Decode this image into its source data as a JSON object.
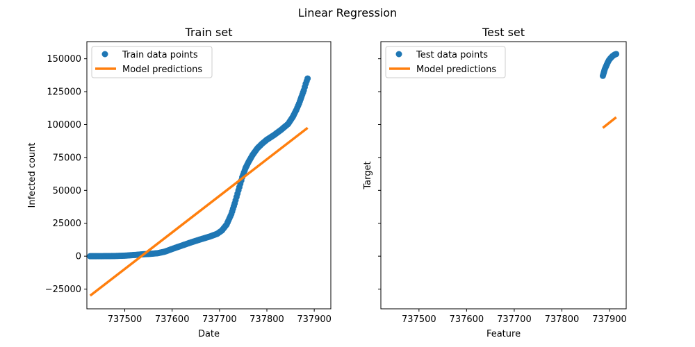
{
  "figure": {
    "title": "Linear Regression"
  },
  "colors": {
    "points": "#1f77b4",
    "line": "#ff7f0e"
  },
  "chart_data": [
    {
      "type": "scatter",
      "title": "Train set",
      "xlabel": "Date",
      "ylabel": "Infected count",
      "xlim": [
        737420,
        737935
      ],
      "ylim": [
        -40000,
        163000
      ],
      "xticks": [
        737500,
        737600,
        737700,
        737800,
        737900
      ],
      "yticks": [
        -25000,
        0,
        25000,
        50000,
        75000,
        100000,
        125000,
        150000
      ],
      "legend": {
        "position": "upper-left",
        "entries": [
          "Train data points",
          "Model predictions"
        ]
      },
      "series": [
        {
          "name": "Train data points",
          "kind": "scatter",
          "points": [
            [
              737427,
              0
            ],
            [
              737440,
              0
            ],
            [
              737460,
              50
            ],
            [
              737480,
              150
            ],
            [
              737500,
              400
            ],
            [
              737520,
              900
            ],
            [
              737540,
              1500
            ],
            [
              737555,
              1800
            ],
            [
              737570,
              2300
            ],
            [
              737585,
              3500
            ],
            [
              737600,
              5500
            ],
            [
              737620,
              8000
            ],
            [
              737640,
              10500
            ],
            [
              737660,
              12800
            ],
            [
              737680,
              15000
            ],
            [
              737695,
              17000
            ],
            [
              737705,
              19500
            ],
            [
              737715,
              24000
            ],
            [
              737725,
              32000
            ],
            [
              737732,
              40000
            ],
            [
              737740,
              50000
            ],
            [
              737748,
              60000
            ],
            [
              737755,
              67000
            ],
            [
              737762,
              72000
            ],
            [
              737770,
              77000
            ],
            [
              737780,
              82000
            ],
            [
              737790,
              85500
            ],
            [
              737800,
              88500
            ],
            [
              737815,
              92000
            ],
            [
              737830,
              96000
            ],
            [
              737845,
              100500
            ],
            [
              737855,
              106000
            ],
            [
              737862,
              111000
            ],
            [
              737868,
              116000
            ],
            [
              737873,
              121000
            ],
            [
              737878,
              126000
            ],
            [
              737882,
              131000
            ],
            [
              737886,
              135000
            ]
          ]
        },
        {
          "name": "Model predictions",
          "kind": "line",
          "points": [
            [
              737427,
              -30000
            ],
            [
              737886,
              97500
            ]
          ]
        }
      ]
    },
    {
      "type": "scatter",
      "title": "Test set",
      "xlabel": "Feature",
      "ylabel": "Target",
      "xlim": [
        737420,
        737935
      ],
      "ylim": [
        -40000,
        163000
      ],
      "xticks": [
        737500,
        737600,
        737700,
        737800,
        737900
      ],
      "yticks": [
        -25000,
        0,
        25000,
        50000,
        75000,
        100000,
        125000,
        150000
      ],
      "legend": {
        "position": "upper-left",
        "entries": [
          "Test data points",
          "Model predictions"
        ]
      },
      "series": [
        {
          "name": "Test data points",
          "kind": "scatter",
          "points": [
            [
              737886,
              137000
            ],
            [
              737888,
              139500
            ],
            [
              737890,
              142000
            ],
            [
              737893,
              144500
            ],
            [
              737896,
              147000
            ],
            [
              737899,
              149000
            ],
            [
              737903,
              150800
            ],
            [
              737907,
              152200
            ],
            [
              737911,
              153200
            ],
            [
              737914,
              153600
            ]
          ]
        },
        {
          "name": "Model predictions",
          "kind": "line",
          "points": [
            [
              737886,
              97500
            ],
            [
              737914,
              105500
            ]
          ]
        }
      ]
    }
  ]
}
